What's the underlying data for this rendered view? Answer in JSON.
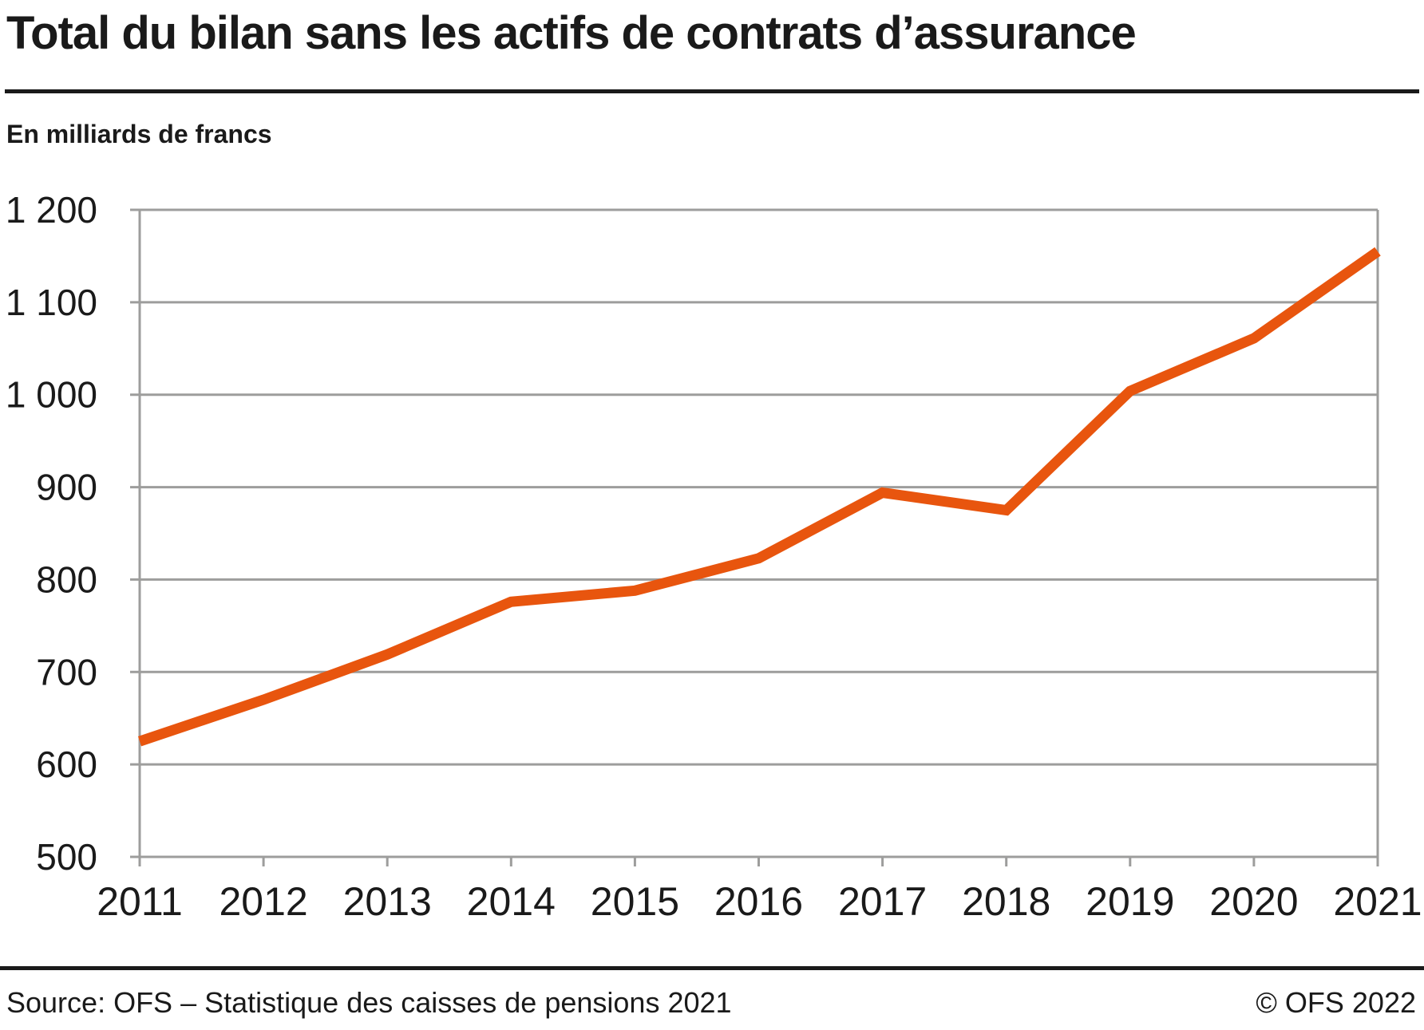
{
  "header": {
    "title": "Total du bilan sans les actifs de contrats d’assurance",
    "unit_label": "En milliards de francs"
  },
  "chart_data": {
    "type": "line",
    "title": "Total du bilan sans les actifs de contrats d’assurance",
    "subtitle": "En milliards de francs",
    "xlabel": "",
    "ylabel": "En milliards de francs",
    "categories": [
      "2011",
      "2012",
      "2013",
      "2014",
      "2015",
      "2016",
      "2017",
      "2018",
      "2019",
      "2020",
      "2021"
    ],
    "series": [
      {
        "name": "Total du bilan sans les actifs de contrats d’assurance",
        "values": [
          625,
          670,
          719,
          776,
          788,
          823,
          894,
          875,
          1004,
          1061,
          1155
        ]
      }
    ],
    "ylim": [
      500,
      1200
    ],
    "ytick_step": 100,
    "ytick_labels": [
      "500",
      "600",
      "700",
      "800",
      "900",
      "1 000",
      "1 100",
      "1 200"
    ],
    "grid": true,
    "legend_position": "none",
    "line_color": "#e8550e",
    "grid_color": "#9d9d9c",
    "text_color": "#1a1a1a"
  },
  "footer": {
    "source": "Source: OFS – Statistique des caisses de pensions 2021",
    "copyright": "© OFS 2022"
  }
}
